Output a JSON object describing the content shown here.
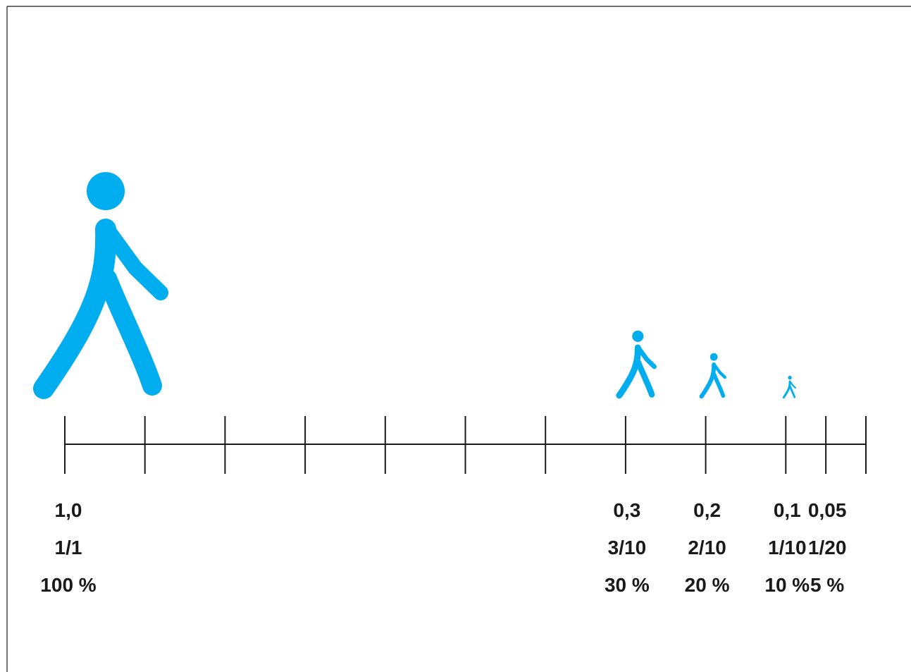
{
  "colors": {
    "figure": "#00adee",
    "ink": "#1a1a1a",
    "background": "#ffffff"
  },
  "scale": {
    "min": 0,
    "max": 1.0,
    "direction": "decreasing-left-to-right",
    "minor_tick_values": [
      1.0,
      0.9,
      0.8,
      0.7,
      0.6,
      0.5,
      0.4,
      0.3,
      0.2,
      0.1,
      0.05,
      0.0
    ]
  },
  "markers": [
    {
      "value": 1.0,
      "decimal": "1,0",
      "fraction": "1/1",
      "percent": "100 %",
      "icon": "walking-person-icon"
    },
    {
      "value": 0.3,
      "decimal": "0,3",
      "fraction": "3/10",
      "percent": "30 %",
      "icon": "walking-person-icon"
    },
    {
      "value": 0.2,
      "decimal": "0,2",
      "fraction": "2/10",
      "percent": "20 %",
      "icon": "walking-person-icon"
    },
    {
      "value": 0.1,
      "decimal": "0,1",
      "fraction": "1/10",
      "percent": "10 %",
      "icon": "walking-person-icon"
    },
    {
      "value": 0.05,
      "decimal": "0,05",
      "fraction": "1/20",
      "percent": "5 %",
      "icon": null
    }
  ]
}
